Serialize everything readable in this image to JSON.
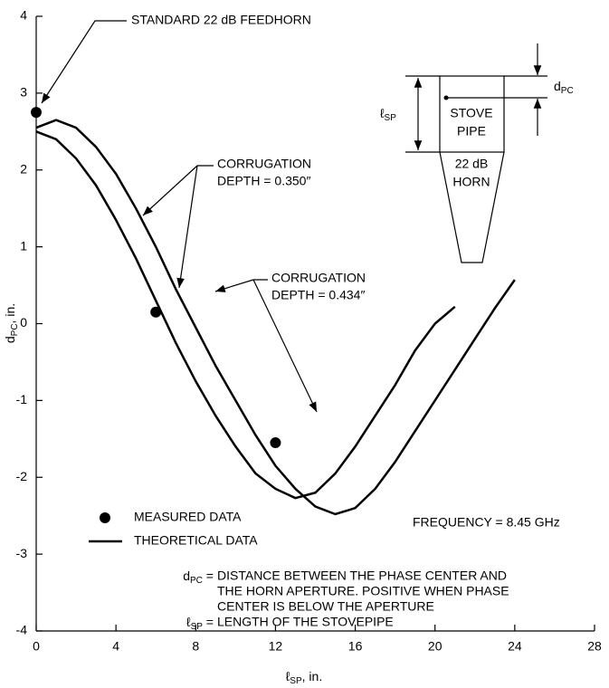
{
  "chart_data": {
    "type": "line",
    "xlabel": {
      "main": "ℓ",
      "sub": "SP",
      "rest": ", in."
    },
    "ylabel": {
      "main": "d",
      "sub": "PC",
      "rest": ", in."
    },
    "xlim": [
      0,
      28
    ],
    "xticks": [
      0,
      4,
      8,
      12,
      16,
      20,
      24,
      28
    ],
    "ylim": [
      -4,
      4
    ],
    "yticks": [
      -4,
      -3,
      -2,
      -1,
      0,
      1,
      2,
      3,
      4
    ],
    "grid": false,
    "series": [
      {
        "name": "MEASURED DATA",
        "type": "scatter",
        "color": "#000000",
        "x": [
          0,
          6,
          12
        ],
        "values": [
          2.75,
          0.15,
          -1.55
        ]
      },
      {
        "name": "THEORETICAL DATA",
        "type": "line",
        "color": "#000000",
        "curves": [
          {
            "x": [
              0,
              1,
              2,
              3,
              4,
              5,
              6,
              7,
              8,
              9,
              10,
              11,
              12,
              13,
              14,
              15,
              16,
              17,
              18,
              19,
              20,
              21
            ],
            "values": [
              2.5,
              2.4,
              2.15,
              1.8,
              1.35,
              0.85,
              0.3,
              -0.25,
              -0.75,
              -1.2,
              -1.6,
              -1.95,
              -2.15,
              -2.27,
              -2.2,
              -1.95,
              -1.6,
              -1.2,
              -0.8,
              -0.35,
              0.0,
              0.22
            ]
          },
          {
            "x": [
              0,
              1,
              2,
              3,
              4,
              5,
              6,
              7,
              8,
              9,
              10,
              11,
              12,
              13,
              14,
              15,
              16,
              17,
              18,
              19,
              20,
              21,
              22,
              23,
              24
            ],
            "values": [
              2.55,
              2.65,
              2.55,
              2.3,
              1.95,
              1.5,
              1.0,
              0.45,
              -0.05,
              -0.55,
              -1.0,
              -1.45,
              -1.85,
              -2.15,
              -2.38,
              -2.48,
              -2.4,
              -2.15,
              -1.8,
              -1.4,
              -1.0,
              -0.6,
              -0.2,
              0.2,
              0.57
            ]
          }
        ]
      }
    ],
    "annotations": {
      "feedhorn": "STANDARD 22 dB FEEDHORN",
      "depth1": [
        "CORRUGATION",
        "DEPTH = 0.350″"
      ],
      "depth2": [
        "CORRUGATION",
        "DEPTH = 0.434″"
      ],
      "frequency": "FREQUENCY = 8.45 GHz"
    },
    "notes": {
      "dpc_symbol": {
        "main": "d",
        "sub": "PC",
        "rest": " ="
      },
      "dpc_lines": [
        "DISTANCE BETWEEN THE PHASE CENTER AND",
        "THE HORN APERTURE.  POSITIVE WHEN PHASE",
        "CENTER IS BELOW THE APERTURE"
      ],
      "lsp_symbol": {
        "main": "ℓ",
        "sub": "SP",
        "rest": " ="
      },
      "lsp_line": "LENGTH OF THE STOVEPIPE"
    },
    "inset": {
      "pipe": [
        "STOVE",
        "PIPE"
      ],
      "horn": [
        "22 dB",
        "HORN"
      ],
      "lsp": {
        "main": "ℓ",
        "sub": "SP"
      },
      "dpc": {
        "main": "d",
        "sub": "PC"
      }
    }
  }
}
